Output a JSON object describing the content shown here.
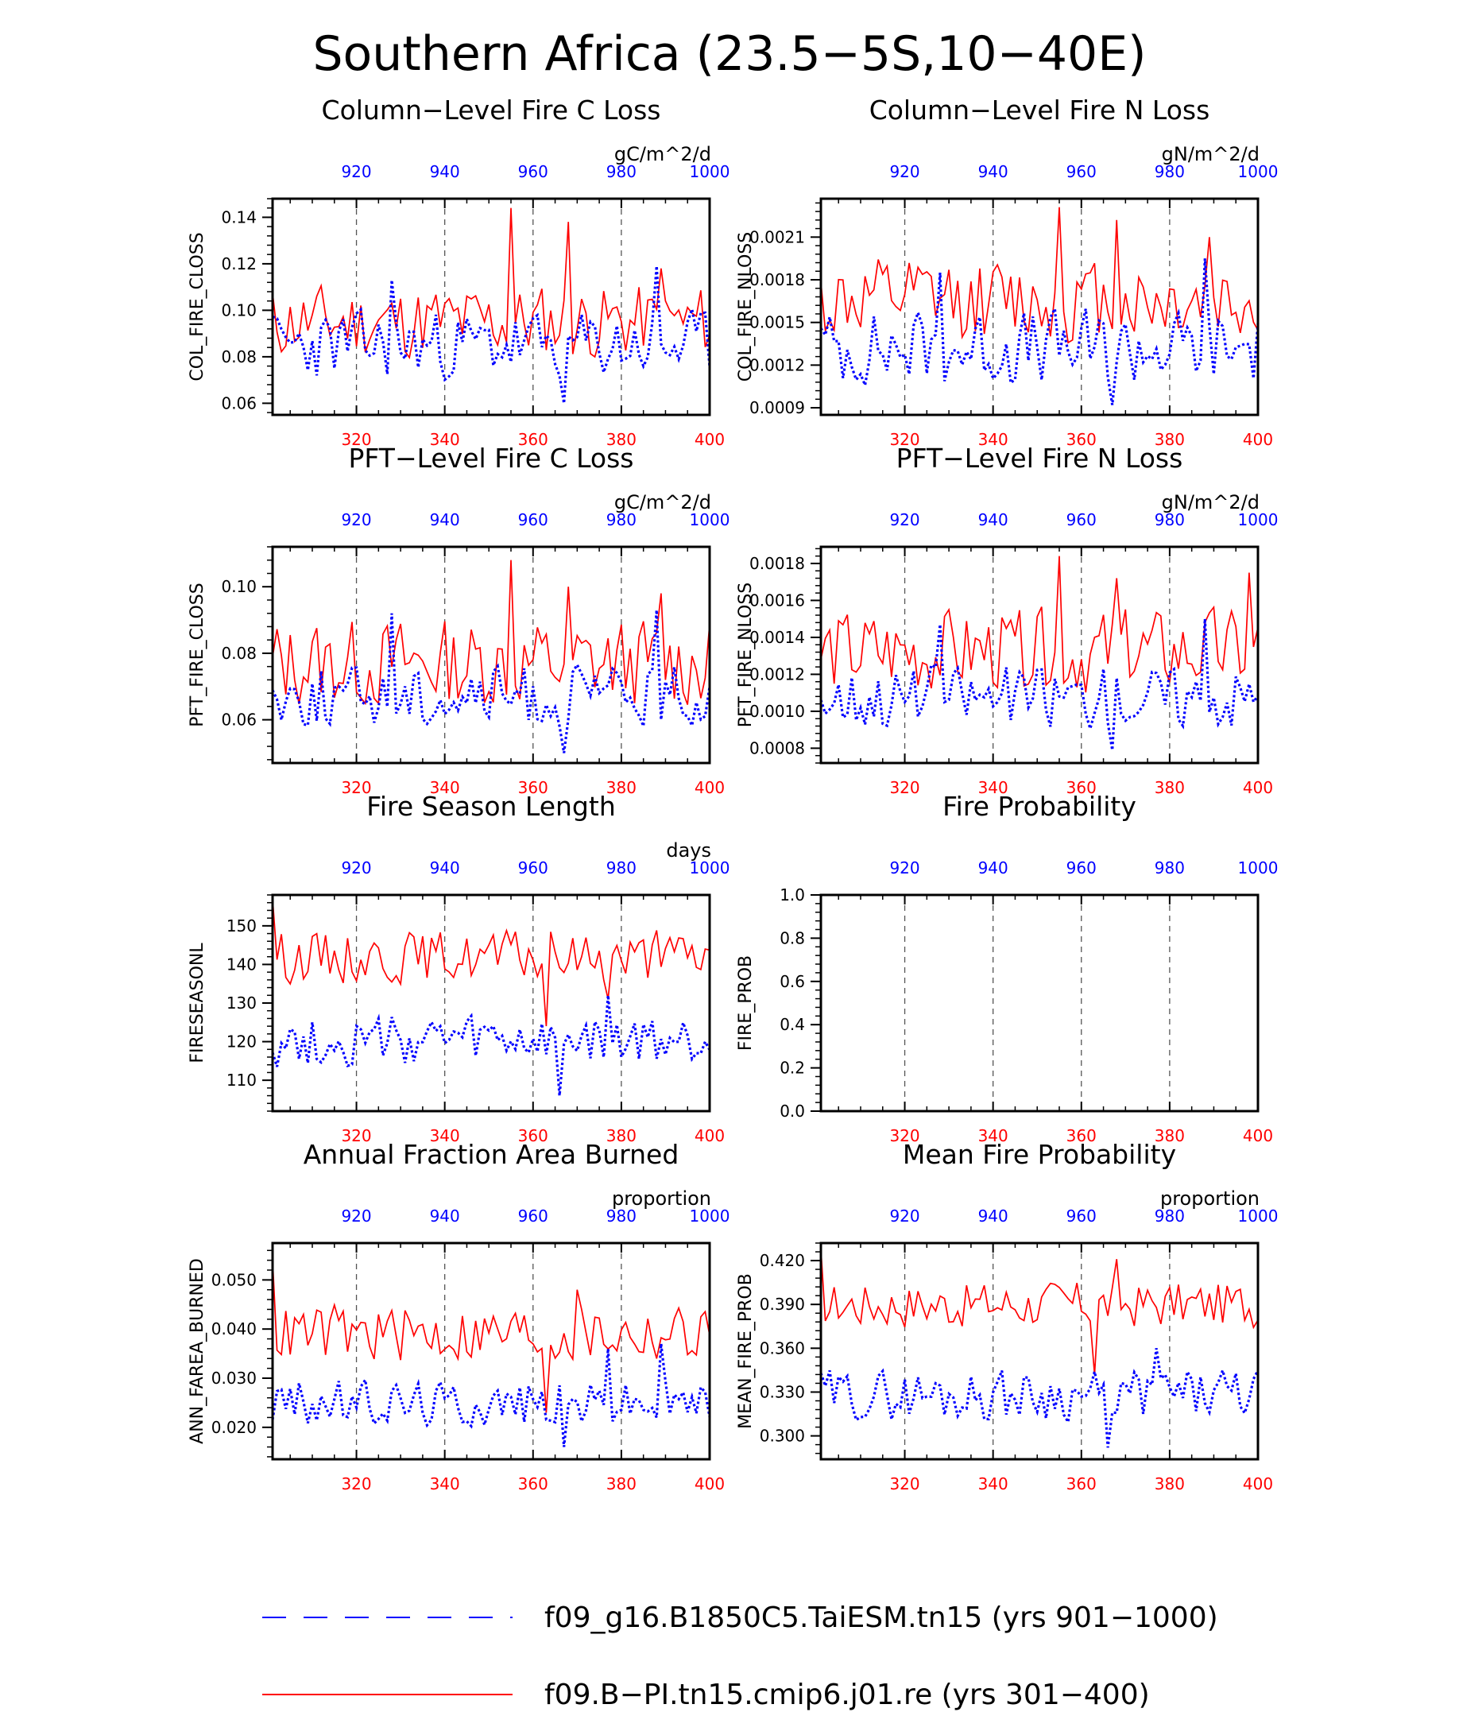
{
  "page": {
    "title": "Southern Africa (23.5−5S,10−40E)"
  },
  "colors": {
    "red": "#ff0000",
    "blue": "#0000ff",
    "black": "#000000",
    "grid": "#555555"
  },
  "legend": {
    "items": [
      {
        "label": "f09_g16.B1850C5.TaiESM.tn15 (yrs 901−1000)",
        "color": "#0000ff",
        "style": "dashed"
      },
      {
        "label": "f09.B−PI.tn15.cmip6.j01.re (yrs 301−400)",
        "color": "#ff0000",
        "style": "solid"
      }
    ]
  },
  "chart_data": [
    {
      "type": "line",
      "title": "Column−Level Fire C Loss",
      "units": "gC/m^2/d",
      "ylabel": "COL_FIRE_CLOSS",
      "ylim": [
        0.055,
        0.148
      ],
      "yticks": [
        0.06,
        0.08,
        0.1,
        0.12,
        0.14
      ],
      "ytick_labels": [
        "0.06",
        "0.08",
        "0.10",
        "0.12",
        "0.14"
      ],
      "x_bottom": {
        "range": [
          301,
          400
        ],
        "ticks": [
          320,
          340,
          360,
          380,
          400
        ],
        "color": "#ff0000"
      },
      "x_top": {
        "range": [
          901,
          1000
        ],
        "ticks": [
          920,
          940,
          960,
          980,
          1000
        ],
        "color": "#0000ff"
      },
      "grid": "dashed vertical at bottom ticks 320, 340, 360, 380",
      "series": [
        {
          "name": "f09.B−PI.tn15.cmip6.j01.re (yrs 301−400)",
          "axis": "bottom",
          "style": "solid",
          "color": "#ff0000",
          "base": 0.095,
          "amp": 0.012,
          "seed": 11,
          "spikes": [
            [
              355,
              0.144
            ],
            [
              368,
              0.138
            ],
            [
              389,
              0.118
            ]
          ]
        },
        {
          "name": "f09_g16.B1850C5.TaiESM.tn15 (yrs 901−1000)",
          "axis": "top",
          "style": "dashed",
          "color": "#0000ff",
          "base": 0.085,
          "amp": 0.011,
          "seed": 23,
          "spikes": [
            [
              967,
              0.06
            ],
            [
              928,
              0.113
            ],
            [
              988,
              0.119
            ]
          ]
        }
      ]
    },
    {
      "type": "line",
      "title": "Column−Level Fire N Loss",
      "units": "gN/m^2/d",
      "ylabel": "COL_FIRE_NLOSS",
      "ylim": [
        0.00085,
        0.00237
      ],
      "yticks": [
        0.0009,
        0.0012,
        0.0015,
        0.0018,
        0.0021
      ],
      "ytick_labels": [
        "0.0009",
        "0.0012",
        "0.0015",
        "0.0018",
        "0.0021"
      ],
      "x_bottom": {
        "range": [
          301,
          400
        ],
        "ticks": [
          320,
          340,
          360,
          380,
          400
        ],
        "color": "#ff0000"
      },
      "x_top": {
        "range": [
          901,
          1000
        ],
        "ticks": [
          920,
          940,
          960,
          980,
          1000
        ],
        "color": "#0000ff"
      },
      "grid": "dashed vertical at bottom ticks 320, 340, 360, 380",
      "series": [
        {
          "name": "f09.B−PI.tn15.cmip6.j01.re (yrs 301−400)",
          "axis": "bottom",
          "style": "solid",
          "color": "#ff0000",
          "base": 0.00165,
          "amp": 0.00022,
          "seed": 12,
          "spikes": [
            [
              355,
              0.00231
            ],
            [
              368,
              0.00222
            ],
            [
              389,
              0.0021
            ]
          ]
        },
        {
          "name": "f09_g16.B1850C5.TaiESM.tn15 (yrs 901−1000)",
          "axis": "top",
          "style": "dashed",
          "color": "#0000ff",
          "base": 0.00132,
          "amp": 0.0002,
          "seed": 24,
          "spikes": [
            [
              967,
              0.00092
            ],
            [
              928,
              0.00185
            ],
            [
              988,
              0.00195
            ]
          ]
        }
      ]
    },
    {
      "type": "line",
      "title": "PFT−Level Fire C Loss",
      "units": "gC/m^2/d",
      "ylabel": "PFT_FIRE_CLOSS",
      "ylim": [
        0.047,
        0.112
      ],
      "yticks": [
        0.06,
        0.08,
        0.1
      ],
      "ytick_labels": [
        "0.06",
        "0.08",
        "0.10"
      ],
      "x_bottom": {
        "range": [
          301,
          400
        ],
        "ticks": [
          320,
          340,
          360,
          380,
          400
        ],
        "color": "#ff0000"
      },
      "x_top": {
        "range": [
          901,
          1000
        ],
        "ticks": [
          920,
          940,
          960,
          980,
          1000
        ],
        "color": "#0000ff"
      },
      "grid": "dashed vertical at bottom ticks 320, 340, 360, 380",
      "series": [
        {
          "name": "f09.B−PI.tn15.cmip6.j01.re (yrs 301−400)",
          "axis": "bottom",
          "style": "solid",
          "color": "#ff0000",
          "base": 0.077,
          "amp": 0.01,
          "seed": 13,
          "spikes": [
            [
              355,
              0.108
            ],
            [
              368,
              0.1
            ],
            [
              389,
              0.098
            ]
          ]
        },
        {
          "name": "f09_g16.B1850C5.TaiESM.tn15 (yrs 901−1000)",
          "axis": "top",
          "style": "dashed",
          "color": "#0000ff",
          "base": 0.067,
          "amp": 0.007,
          "seed": 25,
          "spikes": [
            [
              967,
              0.05
            ],
            [
              928,
              0.092
            ],
            [
              988,
              0.093
            ]
          ]
        }
      ]
    },
    {
      "type": "line",
      "title": "PFT−Level Fire N Loss",
      "units": "gN/m^2/d",
      "ylabel": "PFT_FIRE_NLOSS",
      "ylim": [
        0.00072,
        0.00189
      ],
      "yticks": [
        0.0008,
        0.001,
        0.0012,
        0.0014,
        0.0016,
        0.0018
      ],
      "ytick_labels": [
        "0.0008",
        "0.0010",
        "0.0012",
        "0.0014",
        "0.0016",
        "0.0018"
      ],
      "x_bottom": {
        "range": [
          301,
          400
        ],
        "ticks": [
          320,
          340,
          360,
          380,
          400
        ],
        "color": "#ff0000"
      },
      "x_top": {
        "range": [
          901,
          1000
        ],
        "ticks": [
          920,
          940,
          960,
          980,
          1000
        ],
        "color": "#0000ff"
      },
      "grid": "dashed vertical at bottom ticks 320, 340, 360, 380",
      "series": [
        {
          "name": "f09.B−PI.tn15.cmip6.j01.re (yrs 301−400)",
          "axis": "bottom",
          "style": "solid",
          "color": "#ff0000",
          "base": 0.00132,
          "amp": 0.00017,
          "seed": 14,
          "spikes": [
            [
              355,
              0.00184
            ],
            [
              368,
              0.00172
            ],
            [
              398,
              0.00175
            ]
          ]
        },
        {
          "name": "f09_g16.B1850C5.TaiESM.tn15 (yrs 901−1000)",
          "axis": "top",
          "style": "dashed",
          "color": "#0000ff",
          "base": 0.00108,
          "amp": 0.00013,
          "seed": 26,
          "spikes": [
            [
              967,
              0.00079
            ],
            [
              928,
              0.00147
            ],
            [
              988,
              0.0015
            ]
          ]
        }
      ]
    },
    {
      "type": "line",
      "title": "Fire Season Length",
      "units": "days",
      "ylabel": "FIRESEASONL",
      "ylim": [
        102,
        158
      ],
      "yticks": [
        110,
        120,
        130,
        140,
        150
      ],
      "ytick_labels": [
        "110",
        "120",
        "130",
        "140",
        "150"
      ],
      "x_bottom": {
        "range": [
          301,
          400
        ],
        "ticks": [
          320,
          340,
          360,
          380,
          400
        ],
        "color": "#ff0000"
      },
      "x_top": {
        "range": [
          901,
          1000
        ],
        "ticks": [
          920,
          940,
          960,
          980,
          1000
        ],
        "color": "#0000ff"
      },
      "grid": "dashed vertical at bottom ticks 320, 340, 360, 380",
      "series": [
        {
          "name": "f09.B−PI.tn15.cmip6.j01.re (yrs 301−400)",
          "axis": "bottom",
          "style": "solid",
          "color": "#ff0000",
          "base": 142,
          "amp": 5,
          "seed": 15,
          "spikes": [
            [
              301,
              157
            ],
            [
              363,
              124
            ],
            [
              377,
              131
            ]
          ]
        },
        {
          "name": "f09_g16.B1850C5.TaiESM.tn15 (yrs 901−1000)",
          "axis": "top",
          "style": "dashed",
          "color": "#0000ff",
          "base": 120,
          "amp": 5,
          "seed": 27,
          "spikes": [
            [
              966,
              106
            ],
            [
              977,
              132
            ]
          ]
        }
      ]
    },
    {
      "type": "line",
      "title": "Fire Probability",
      "units": "",
      "ylabel": "FIRE_PROB",
      "ylim": [
        0,
        1
      ],
      "yticks": [
        0.0,
        0.2,
        0.4,
        0.6,
        0.8,
        1.0
      ],
      "ytick_labels": [
        "0.0",
        "0.2",
        "0.4",
        "0.6",
        "0.8",
        "1.0"
      ],
      "x_bottom": {
        "range": [
          301,
          400
        ],
        "ticks": [
          320,
          340,
          360,
          380,
          400
        ],
        "color": "#ff0000"
      },
      "x_top": {
        "range": [
          901,
          1000
        ],
        "ticks": [
          920,
          940,
          960,
          980,
          1000
        ],
        "color": "#0000ff"
      },
      "grid": "dashed vertical at bottom ticks 320, 340, 360, 380",
      "series": []
    },
    {
      "type": "line",
      "title": "Annual Fraction Area Burned",
      "units": "proportion",
      "ylabel": "ANN_FAREA_BURNED",
      "ylim": [
        0.0135,
        0.0575
      ],
      "yticks": [
        0.02,
        0.03,
        0.04,
        0.05
      ],
      "ytick_labels": [
        "0.020",
        "0.030",
        "0.040",
        "0.050"
      ],
      "x_bottom": {
        "range": [
          301,
          400
        ],
        "ticks": [
          320,
          340,
          360,
          380,
          400
        ],
        "color": "#ff0000"
      },
      "x_top": {
        "range": [
          901,
          1000
        ],
        "ticks": [
          920,
          940,
          960,
          980,
          1000
        ],
        "color": "#0000ff"
      },
      "grid": "dashed vertical at bottom ticks 320, 340, 360, 380",
      "series": [
        {
          "name": "f09.B−PI.tn15.cmip6.j01.re (yrs 301−400)",
          "axis": "bottom",
          "style": "solid",
          "color": "#ff0000",
          "base": 0.039,
          "amp": 0.0045,
          "seed": 16,
          "spikes": [
            [
              301,
              0.054
            ],
            [
              363,
              0.023
            ],
            [
              370,
              0.048
            ]
          ]
        },
        {
          "name": "f09_g16.B1850C5.TaiESM.tn15 (yrs 901−1000)",
          "axis": "top",
          "style": "dashed",
          "color": "#0000ff",
          "base": 0.025,
          "amp": 0.0035,
          "seed": 28,
          "spikes": [
            [
              967,
              0.016
            ],
            [
              977,
              0.036
            ],
            [
              989,
              0.037
            ]
          ]
        }
      ]
    },
    {
      "type": "line",
      "title": "Mean Fire Probability",
      "units": "proportion",
      "ylabel": "MEAN_FIRE_PROB",
      "ylim": [
        0.284,
        0.432
      ],
      "yticks": [
        0.3,
        0.33,
        0.36,
        0.39,
        0.42
      ],
      "ytick_labels": [
        "0.300",
        "0.330",
        "0.360",
        "0.390",
        "0.420"
      ],
      "x_bottom": {
        "range": [
          301,
          400
        ],
        "ticks": [
          320,
          340,
          360,
          380,
          400
        ],
        "color": "#ff0000"
      },
      "x_top": {
        "range": [
          901,
          1000
        ],
        "ticks": [
          920,
          940,
          960,
          980,
          1000
        ],
        "color": "#0000ff"
      },
      "grid": "dashed vertical at bottom ticks 320, 340, 360, 380",
      "series": [
        {
          "name": "f09.B−PI.tn15.cmip6.j01.re (yrs 301−400)",
          "axis": "bottom",
          "style": "solid",
          "color": "#ff0000",
          "base": 0.39,
          "amp": 0.012,
          "seed": 17,
          "spikes": [
            [
              301,
              0.428
            ],
            [
              363,
              0.342
            ],
            [
              368,
              0.421
            ]
          ]
        },
        {
          "name": "f09_g16.B1850C5.TaiESM.tn15 (yrs 901−1000)",
          "axis": "top",
          "style": "dashed",
          "color": "#0000ff",
          "base": 0.328,
          "amp": 0.013,
          "seed": 29,
          "spikes": [
            [
              966,
              0.292
            ],
            [
              977,
              0.36
            ]
          ]
        }
      ]
    }
  ]
}
